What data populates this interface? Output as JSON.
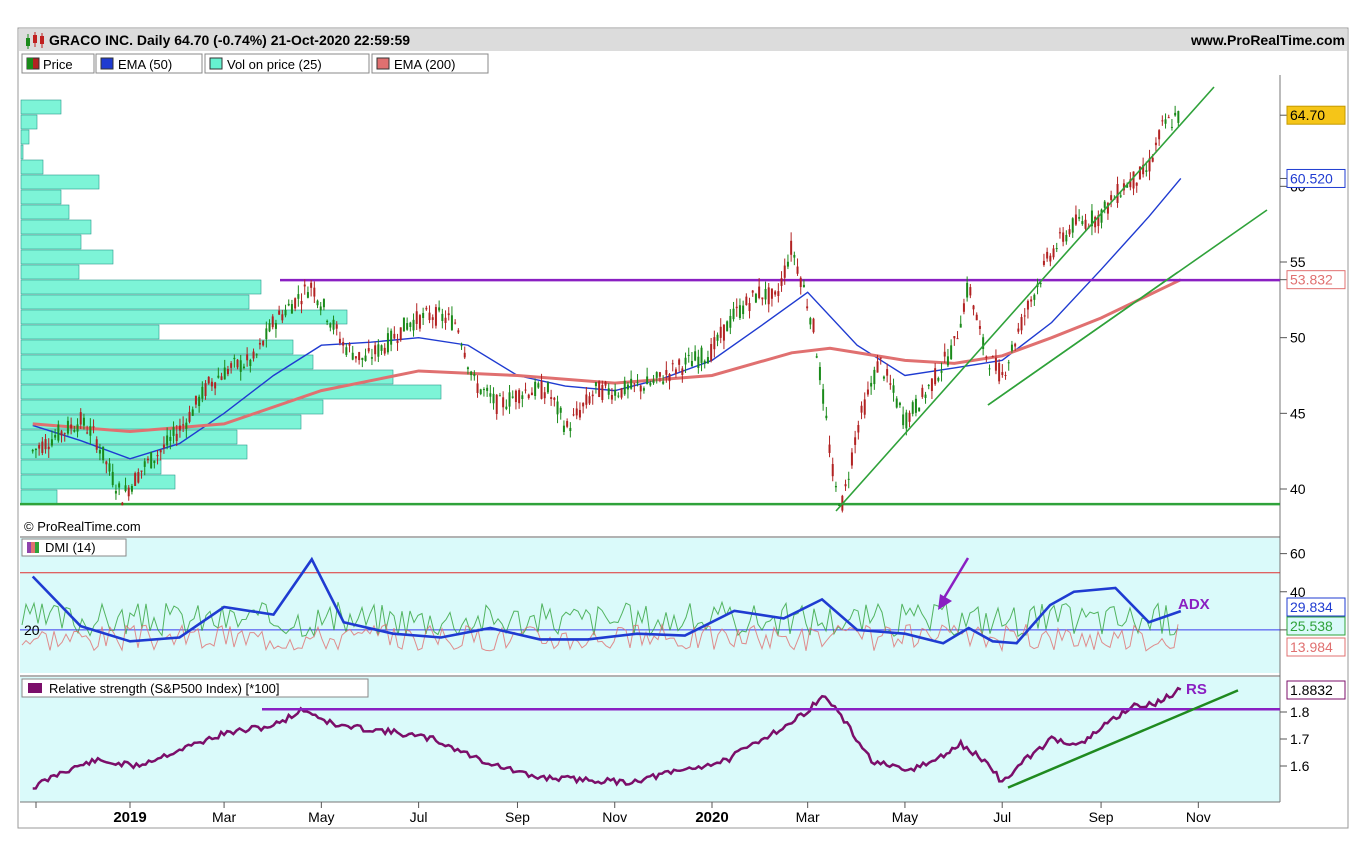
{
  "header": {
    "title": "GRACO INC. Daily 64.70 (-0.74%) 21-Oct-2020 22:59:59",
    "website": "www.ProRealTime.com"
  },
  "legend": [
    {
      "label": "Price",
      "color": "#b22222"
    },
    {
      "label": "EMA (50)",
      "color": "#1f3bd1"
    },
    {
      "label": "Vol on price (25)",
      "color": "#66f2d0"
    },
    {
      "label": "EMA (200)",
      "color": "#e07070"
    }
  ],
  "copyright": "© ProRealTime.com",
  "dmi_title": "DMI (14)",
  "rs_title": "Relative strength (S&P500 Index) [*100]",
  "adx_label": "ADX",
  "rs_label": "RS",
  "chart_data": [
    {
      "type": "line",
      "title": "GRACO INC. Daily 64.70 (-0.74%) 21-Oct-2020 22:59:59",
      "x_ticks": [
        "2019",
        "Mar",
        "May",
        "Jul",
        "Sep",
        "Nov",
        "2020",
        "Mar",
        "May",
        "Jul",
        "Sep",
        "Nov"
      ],
      "x_range": [
        "2018-11",
        "2020-11"
      ],
      "ylim": [
        38,
        68
      ],
      "y_ticks": [
        40,
        45,
        50,
        55,
        60
      ],
      "last_price": "64.70",
      "tags": [
        {
          "value": "64.70",
          "y": 64.7,
          "color": "#000000",
          "bg": "#f5c518"
        },
        {
          "value": "60.520",
          "y": 60.52,
          "color": "#1f3bd1",
          "bg": "#ffffff"
        },
        {
          "value": "53.832",
          "y": 53.832,
          "color": "#e07070",
          "bg": "#ffffff"
        }
      ],
      "series": [
        {
          "name": "Price",
          "color": "#b22222",
          "points": [
            [
              "2018-11-01",
              42.5
            ],
            [
              "2018-11-15",
              43.5
            ],
            [
              "2018-12-01",
              44.5
            ],
            [
              "2018-12-10",
              43.5
            ],
            [
              "2018-12-20",
              41.0
            ],
            [
              "2018-12-27",
              39.5
            ],
            [
              "2019-01-10",
              41.5
            ],
            [
              "2019-01-25",
              43.0
            ],
            [
              "2019-02-05",
              44.5
            ],
            [
              "2019-02-20",
              47.0
            ],
            [
              "2019-03-05",
              48.0
            ],
            [
              "2019-03-20",
              48.5
            ],
            [
              "2019-04-01",
              51.0
            ],
            [
              "2019-04-15",
              52.5
            ],
            [
              "2019-04-25",
              53.5
            ],
            [
              "2019-05-05",
              51.5
            ],
            [
              "2019-05-15",
              49.5
            ],
            [
              "2019-05-28",
              48.5
            ],
            [
              "2019-06-10",
              49.5
            ],
            [
              "2019-06-25",
              51.0
            ],
            [
              "2019-07-10",
              51.5
            ],
            [
              "2019-07-25",
              51.0
            ],
            [
              "2019-08-05",
              47.0
            ],
            [
              "2019-08-20",
              45.5
            ],
            [
              "2019-09-05",
              46.5
            ],
            [
              "2019-09-20",
              46.5
            ],
            [
              "2019-10-02",
              44.0
            ],
            [
              "2019-10-20",
              46.5
            ],
            [
              "2019-11-05",
              46.5
            ],
            [
              "2019-11-25",
              47.0
            ],
            [
              "2019-12-10",
              48.0
            ],
            [
              "2019-12-31",
              49.0
            ],
            [
              "2020-01-15",
              51.5
            ],
            [
              "2020-01-31",
              53.0
            ],
            [
              "2020-02-10",
              52.5
            ],
            [
              "2020-02-20",
              56.0
            ],
            [
              "2020-02-27",
              53.5
            ],
            [
              "2020-03-05",
              50.5
            ],
            [
              "2020-03-12",
              45.0
            ],
            [
              "2020-03-18",
              40.0
            ],
            [
              "2020-03-23",
              39.0
            ],
            [
              "2020-04-01",
              44.0
            ],
            [
              "2020-04-15",
              48.5
            ],
            [
              "2020-05-01",
              44.5
            ],
            [
              "2020-05-15",
              46.5
            ],
            [
              "2020-06-01",
              49.5
            ],
            [
              "2020-06-10",
              53.5
            ],
            [
              "2020-06-20",
              49.0
            ],
            [
              "2020-07-01",
              47.5
            ],
            [
              "2020-07-15",
              51.5
            ],
            [
              "2020-07-31",
              55.5
            ],
            [
              "2020-08-15",
              57.5
            ],
            [
              "2020-08-31",
              58.0
            ],
            [
              "2020-09-15",
              60.0
            ],
            [
              "2020-09-30",
              61.0
            ],
            [
              "2020-10-10",
              64.0
            ],
            [
              "2020-10-21",
              64.7
            ]
          ]
        },
        {
          "name": "EMA (50)",
          "color": "#1f3bd1",
          "points": [
            [
              "2018-11-01",
              44.2
            ],
            [
              "2018-12-01",
              43.2
            ],
            [
              "2019-01-01",
              42.0
            ],
            [
              "2019-02-01",
              43.0
            ],
            [
              "2019-03-01",
              45.0
            ],
            [
              "2019-04-01",
              47.5
            ],
            [
              "2019-05-01",
              49.5
            ],
            [
              "2019-06-01",
              49.7
            ],
            [
              "2019-07-01",
              50.0
            ],
            [
              "2019-08-01",
              49.5
            ],
            [
              "2019-09-01",
              47.5
            ],
            [
              "2019-10-01",
              46.8
            ],
            [
              "2019-11-01",
              46.5
            ],
            [
              "2019-12-01",
              47.3
            ],
            [
              "2020-01-01",
              48.5
            ],
            [
              "2020-02-01",
              50.8
            ],
            [
              "2020-03-01",
              53.0
            ],
            [
              "2020-04-01",
              49.5
            ],
            [
              "2020-05-01",
              47.5
            ],
            [
              "2020-06-01",
              48.0
            ],
            [
              "2020-07-01",
              48.5
            ],
            [
              "2020-08-01",
              51.0
            ],
            [
              "2020-09-01",
              54.5
            ],
            [
              "2020-10-01",
              58.0
            ],
            [
              "2020-10-21",
              60.52
            ]
          ]
        },
        {
          "name": "EMA (200)",
          "color": "#e07070",
          "points": [
            [
              "2018-11-01",
              44.3
            ],
            [
              "2019-01-01",
              43.8
            ],
            [
              "2019-03-01",
              44.3
            ],
            [
              "2019-05-01",
              46.5
            ],
            [
              "2019-07-01",
              47.8
            ],
            [
              "2019-09-01",
              47.5
            ],
            [
              "2019-11-01",
              47.0
            ],
            [
              "2020-01-01",
              47.5
            ],
            [
              "2020-02-20",
              49.0
            ],
            [
              "2020-03-15",
              49.3
            ],
            [
              "2020-05-01",
              48.5
            ],
            [
              "2020-06-01",
              48.3
            ],
            [
              "2020-07-01",
              48.8
            ],
            [
              "2020-08-01",
              50.0
            ],
            [
              "2020-09-01",
              51.3
            ],
            [
              "2020-10-21",
              53.832
            ]
          ]
        },
        {
          "name": "Resistance",
          "color": "#8a1fc2",
          "points": [
            [
              "2019-04-01",
              53.8
            ],
            [
              "2020-11-15",
              53.8
            ]
          ]
        },
        {
          "name": "Support",
          "color": "#2fa23a",
          "points": [
            [
              "2018-11-01",
              39.0
            ],
            [
              "2020-11-15",
              39.0
            ]
          ]
        }
      ]
    },
    {
      "type": "line",
      "title": "DMI (14)",
      "ylim": [
        0,
        64
      ],
      "y_ticks": [
        20,
        40,
        60
      ],
      "reference_lines": [
        {
          "value": 50,
          "color": "#e03030"
        },
        {
          "value": 20,
          "color": "#3a3aee"
        }
      ],
      "last_values": [
        {
          "label": "ADX",
          "value": "29.834",
          "color": "#1f3bd1"
        },
        {
          "label": "+DI",
          "value": "25.538",
          "color": "#2fa23a"
        },
        {
          "label": "-DI",
          "value": "13.984",
          "color": "#e07070"
        }
      ],
      "series": [
        {
          "name": "ADX",
          "color": "#1f3bd1",
          "points": [
            [
              "2018-11-01",
              48
            ],
            [
              "2018-12-01",
              22
            ],
            [
              "2019-01-01",
              14
            ],
            [
              "2019-02-01",
              16
            ],
            [
              "2019-03-01",
              32
            ],
            [
              "2019-04-01",
              28
            ],
            [
              "2019-04-25",
              57
            ],
            [
              "2019-05-15",
              24
            ],
            [
              "2019-06-15",
              18
            ],
            [
              "2019-07-15",
              16
            ],
            [
              "2019-08-15",
              21
            ],
            [
              "2019-09-15",
              15
            ],
            [
              "2019-10-15",
              15
            ],
            [
              "2019-11-15",
              18
            ],
            [
              "2019-12-15",
              17
            ],
            [
              "2020-01-15",
              30
            ],
            [
              "2020-02-15",
              26
            ],
            [
              "2020-03-10",
              36
            ],
            [
              "2020-04-01",
              20
            ],
            [
              "2020-05-01",
              18
            ],
            [
              "2020-05-25",
              13
            ],
            [
              "2020-06-10",
              21
            ],
            [
              "2020-06-25",
              14
            ],
            [
              "2020-07-10",
              13
            ],
            [
              "2020-07-31",
              33
            ],
            [
              "2020-08-15",
              40
            ],
            [
              "2020-09-10",
              42
            ],
            [
              "2020-10-01",
              24
            ],
            [
              "2020-10-21",
              29.834
            ]
          ]
        }
      ]
    },
    {
      "type": "line",
      "title": "Relative strength (S&P500 Index) [*100]",
      "ylim": [
        1.5,
        1.93
      ],
      "y_ticks": [
        1.6,
        1.7,
        1.8
      ],
      "last_value": "1.8832",
      "series": [
        {
          "name": "RS",
          "color": "#7b0e6a",
          "points": [
            [
              "2018-11-01",
              1.52
            ],
            [
              "2018-11-20",
              1.58
            ],
            [
              "2018-12-10",
              1.62
            ],
            [
              "2019-01-05",
              1.6
            ],
            [
              "2019-02-01",
              1.66
            ],
            [
              "2019-03-01",
              1.72
            ],
            [
              "2019-04-01",
              1.75
            ],
            [
              "2019-04-20",
              1.81
            ],
            [
              "2019-05-10",
              1.75
            ],
            [
              "2019-06-10",
              1.73
            ],
            [
              "2019-07-10",
              1.7
            ],
            [
              "2019-08-10",
              1.62
            ],
            [
              "2019-09-10",
              1.56
            ],
            [
              "2019-10-10",
              1.55
            ],
            [
              "2019-11-10",
              1.54
            ],
            [
              "2019-12-10",
              1.58
            ],
            [
              "2020-01-10",
              1.62
            ],
            [
              "2020-02-01",
              1.7
            ],
            [
              "2020-02-20",
              1.76
            ],
            [
              "2020-03-12",
              1.86
            ],
            [
              "2020-03-20",
              1.8
            ],
            [
              "2020-04-10",
              1.62
            ],
            [
              "2020-05-01",
              1.58
            ],
            [
              "2020-05-20",
              1.62
            ],
            [
              "2020-06-05",
              1.68
            ],
            [
              "2020-06-20",
              1.62
            ],
            [
              "2020-07-01",
              1.54
            ],
            [
              "2020-07-15",
              1.62
            ],
            [
              "2020-08-01",
              1.7
            ],
            [
              "2020-08-20",
              1.68
            ],
            [
              "2020-09-05",
              1.76
            ],
            [
              "2020-09-20",
              1.82
            ],
            [
              "2020-10-05",
              1.83
            ],
            [
              "2020-10-21",
              1.8832
            ]
          ]
        },
        {
          "name": "RS resistance",
          "color": "#8a1fc2",
          "points": [
            [
              "2019-01-20",
              1.81
            ],
            [
              "2020-11-15",
              1.81
            ]
          ]
        },
        {
          "name": "RS support",
          "color": "#1f8a1f",
          "points": [
            [
              "2020-07-20",
              1.52
            ],
            [
              "2020-11-15",
              1.88
            ]
          ]
        }
      ]
    }
  ]
}
